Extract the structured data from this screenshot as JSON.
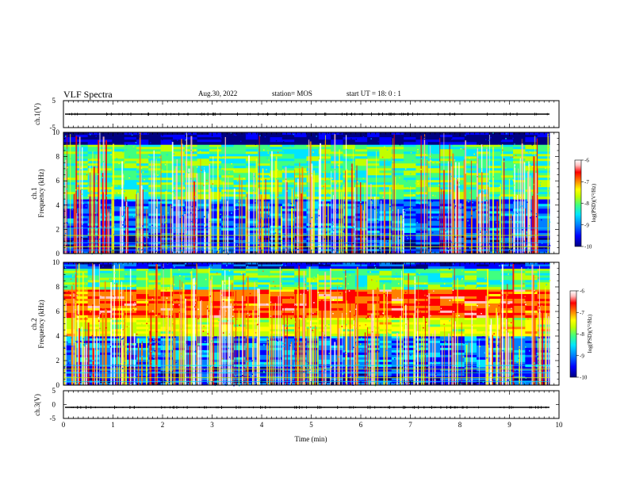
{
  "header": {
    "title": "VLF Spectra",
    "date": "Aug.30, 2022",
    "station": "station= MOS",
    "start_ut": "start  UT  =   18: 0  : 1"
  },
  "chart_data": [
    {
      "type": "line",
      "panel": "ch1-waveform",
      "ylabel": "ch.1(V)",
      "ylim": [
        -5,
        5
      ],
      "yticks": [
        5,
        -5
      ],
      "trace_level": 0
    },
    {
      "type": "heatmap",
      "panel": "ch1-spectrogram",
      "ylabel": [
        "ch.1",
        "Frequency (kHz)"
      ],
      "ylim": [
        0,
        10
      ],
      "yticks": [
        0,
        2,
        4,
        6,
        8,
        10
      ],
      "xlim": [
        0,
        10
      ],
      "colorbar": {
        "label": "log(PSD)(V²/Hz)",
        "ticks": [
          -6,
          -7,
          -8,
          -9,
          -10
        ],
        "range": [
          -10,
          -6
        ]
      },
      "hum_lines_khz": [
        0.3,
        0.55,
        0.9,
        1.5,
        2.1
      ],
      "typical_levels": [
        {
          "band_khz": [
            0,
            1.5
          ],
          "log_psd": -9.6
        },
        {
          "band_khz": [
            1.5,
            4.5
          ],
          "log_psd": -9.3
        },
        {
          "band_khz": [
            4.5,
            9.0
          ],
          "log_psd": -8.4
        },
        {
          "band_khz": [
            9.0,
            10
          ],
          "log_psd": -10
        }
      ]
    },
    {
      "type": "heatmap",
      "panel": "ch2-spectrogram",
      "ylabel": [
        "ch.2",
        "Frequency (kHz)"
      ],
      "ylim": [
        0,
        10
      ],
      "yticks": [
        0,
        2,
        4,
        6,
        8,
        10
      ],
      "xlim": [
        0,
        10
      ],
      "colorbar": {
        "label": "log(PSD)(V²/Hz)",
        "ticks": [
          -6,
          -7,
          -8,
          -9,
          -10
        ],
        "range": [
          -10,
          -6
        ]
      },
      "hum_lines_khz": [
        0.3,
        0.6,
        1.0,
        1.3,
        1.6
      ],
      "typical_levels": [
        {
          "band_khz": [
            0,
            1.5
          ],
          "log_psd": -9.5
        },
        {
          "band_khz": [
            1.5,
            4.0
          ],
          "log_psd": -9.2
        },
        {
          "band_khz": [
            4.0,
            5.5
          ],
          "log_psd": -7.8
        },
        {
          "band_khz": [
            5.5,
            7.8
          ],
          "log_psd": -7.0
        },
        {
          "band_khz": [
            7.8,
            9.5
          ],
          "log_psd": -8.4
        },
        {
          "band_khz": [
            9.5,
            10
          ],
          "log_psd": -9.6
        }
      ]
    },
    {
      "type": "line",
      "panel": "ch3-waveform",
      "ylabel": "ch.3(V)",
      "ylim": [
        -5,
        5
      ],
      "yticks": [
        5,
        0,
        -5
      ],
      "trace_level": -1,
      "xlabel": "Time  (min)",
      "xlim": [
        0,
        10
      ],
      "xticks": [
        0,
        1,
        2,
        3,
        4,
        5,
        6,
        7,
        8,
        9,
        10
      ]
    }
  ],
  "colors": {
    "colormap": [
      "#000080",
      "#0000ff",
      "#0080ff",
      "#00e5ff",
      "#40ff80",
      "#c0ff00",
      "#ffff00",
      "#ff8000",
      "#ff0000",
      "#ffc0c0",
      "#ffffff"
    ],
    "axis": "#000000"
  }
}
